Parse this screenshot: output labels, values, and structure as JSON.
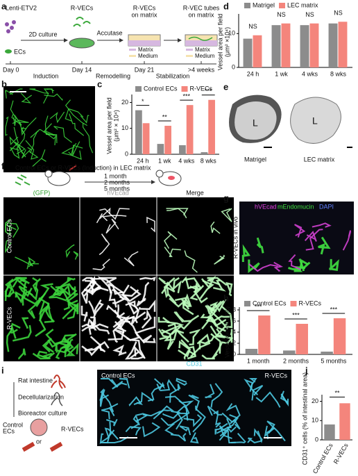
{
  "figure": {
    "panel_labels": [
      "a",
      "b",
      "c",
      "d",
      "e",
      "f",
      "g",
      "h",
      "i",
      "j"
    ],
    "a": {
      "lenti": "Lenti-ETV2",
      "ecs": "ECs",
      "culture": "2D culture",
      "rvecs": "R-VECs",
      "accutase": "Accutase",
      "on_matrix": [
        "R-VECs",
        "on matrix"
      ],
      "tubes": [
        "R-VEC tubes",
        "on matrix"
      ],
      "legend_day21": [
        "Matrix",
        "Medium"
      ],
      "legend_4w": [
        "Matrix",
        "Medium"
      ],
      "days": [
        "Day 0",
        "Day 14",
        "Day 21",
        ">4 weeks"
      ],
      "phases": [
        "Induction",
        "Remodelling",
        "Stabilization"
      ]
    },
    "e": {
      "lumen_1": "L",
      "lumen_2": "L",
      "captions": [
        "Matrigel",
        "LEC matrix"
      ]
    },
    "f": {
      "title": "Control ECs or R-VECs (Induction) in LEC matrix",
      "times": [
        "1 month",
        "2 months",
        "5 months"
      ],
      "columns": [
        "(GFP)",
        "hVEcad",
        "Merge"
      ],
      "rows": [
        "Control ECs",
        "R-VECs"
      ]
    },
    "g": {
      "stains": [
        "hVEcad",
        "mEndomucin",
        "DAPI"
      ],
      "side": "R-VECs in vivo"
    },
    "i": {
      "steps": [
        "Rat intestine",
        "Decellularization",
        "Bioreactor culture"
      ],
      "control": [
        "Control",
        "ECs"
      ],
      "or": "or",
      "rvecs": "R-VECs",
      "image_left": "Control ECs",
      "image_stain": "CD31",
      "image_right": "R-VECs"
    }
  },
  "chart_data": [
    {
      "type": "bar",
      "panel": "c",
      "y_label": [
        "Vessel area per field",
        "(μm² × 10⁴)"
      ],
      "categories": [
        "24 h",
        "1 wk",
        "4 wks",
        "8 wks"
      ],
      "series": [
        {
          "name": "Control ECs",
          "color": "#8c8c8c",
          "values": [
            17,
            4,
            3.5,
            0.8
          ]
        },
        {
          "name": "R-VECs",
          "color": "#f4857c",
          "values": [
            12,
            11,
            19,
            21
          ]
        }
      ],
      "significance": [
        "*",
        "**",
        "***",
        "***"
      ],
      "ylim": [
        0,
        22
      ],
      "yticks": [
        0,
        10,
        20
      ]
    },
    {
      "type": "bar",
      "panel": "d",
      "y_label": [
        "Vessel area per field",
        "(μm² ×10⁴)"
      ],
      "categories": [
        "24 h",
        "1 wk",
        "4 wks",
        "8 wks"
      ],
      "series": [
        {
          "name": "Matrigel",
          "color": "#8c8c8c",
          "values": [
            8.5,
            12.5,
            12.5,
            13
          ]
        },
        {
          "name": "LEC matrix",
          "color": "#f4857c",
          "values": [
            9.5,
            13,
            13,
            13.5
          ]
        }
      ],
      "significance": [
        "NS",
        "NS",
        "NS",
        "NS"
      ],
      "ylim": [
        0,
        15
      ],
      "yticks": [
        0,
        10
      ]
    },
    {
      "type": "bar",
      "panel": "h",
      "y_label": [
        "Vessel density (%)"
      ],
      "categories": [
        "1 month",
        "2 months",
        "5 months"
      ],
      "series": [
        {
          "name": "Control ECs",
          "color": "#8c8c8c",
          "values": [
            1,
            0.7,
            0.5
          ]
        },
        {
          "name": "R-VECs",
          "color": "#f4857c",
          "values": [
            7,
            5.5,
            6.5
          ]
        }
      ],
      "significance": [
        "***",
        "***",
        "***"
      ],
      "ylim": [
        0,
        8
      ],
      "yticks": [
        0,
        2,
        4,
        6,
        8
      ]
    },
    {
      "type": "bar",
      "panel": "j",
      "y_label": [
        "CD31⁺ cells (% of intestinal area)"
      ],
      "categories": [
        "Control ECs",
        "R-VECs"
      ],
      "values": [
        8,
        19
      ],
      "colors": [
        "#8c8c8c",
        "#f4857c"
      ],
      "significance": [
        "**"
      ],
      "ylim": [
        0,
        22
      ],
      "yticks": [
        0,
        10,
        20
      ]
    }
  ]
}
